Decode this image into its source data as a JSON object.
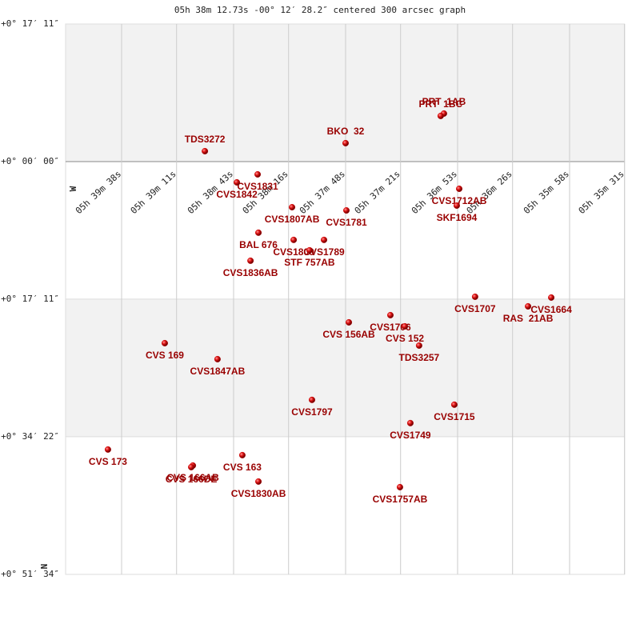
{
  "chart_data": {
    "type": "scatter",
    "title": "05h 38m 12.73s -00° 12′ 28.2″ centered 300 arcsec graph",
    "west_label": "W",
    "north_label": "N",
    "xlim": [
      305.5,
      31
    ],
    "ylim": [
      -1031,
      3094
    ],
    "xticks": [
      {
        "value": 278,
        "label": "05h 39m 38s"
      },
      {
        "value": 251,
        "label": "05h 39m 11s"
      },
      {
        "value": 223,
        "label": "05h 38m 43s"
      },
      {
        "value": 196,
        "label": "05h 38m 16s"
      },
      {
        "value": 168,
        "label": "05h 37m 48s"
      },
      {
        "value": 141,
        "label": "05h 37m 21s"
      },
      {
        "value": 113,
        "label": "05h 36m 53s"
      },
      {
        "value": 86,
        "label": "05h 36m 26s"
      },
      {
        "value": 58,
        "label": "05h 35m 58s"
      },
      {
        "value": 31,
        "label": "05h 35m 31s"
      }
    ],
    "yticks": [
      {
        "value": -1031,
        "label": "+0° 17′ 11″"
      },
      {
        "value": 0,
        "label": "+0° 00′ 00″"
      },
      {
        "value": 1031,
        "label": "+0° 17′ 11″"
      },
      {
        "value": 2062,
        "label": "+0° 34′ 22″"
      },
      {
        "value": 3094,
        "label": "+0° 51′ 34″"
      }
    ],
    "grid": true,
    "marker_color": "#cc0000",
    "label_color": "#990000",
    "points": [
      {
        "name": "PRT  1AB",
        "x": 119.7,
        "y": -360,
        "label_side": "above"
      },
      {
        "name": "PRT  1BC",
        "x": 121.3,
        "y": -342,
        "label_side": "above"
      },
      {
        "name": "BKO  32",
        "x": 168,
        "y": -138,
        "label_side": "above"
      },
      {
        "name": "TDS3272",
        "x": 237.1,
        "y": -78,
        "label_side": "above"
      },
      {
        "name": "CVS1831",
        "x": 211.2,
        "y": 96,
        "label_side": "below"
      },
      {
        "name": "CVS1842",
        "x": 221.4,
        "y": 156,
        "label_side": "below"
      },
      {
        "name": "CVS1712AB",
        "x": 112.2,
        "y": 204,
        "label_side": "below"
      },
      {
        "name": "SKF1694",
        "x": 113.4,
        "y": 330,
        "label_side": "below"
      },
      {
        "name": "CVS1807AB",
        "x": 194.3,
        "y": 342,
        "label_side": "below"
      },
      {
        "name": "CVS1781",
        "x": 167.6,
        "y": 366,
        "label_side": "below"
      },
      {
        "name": "BAL 676",
        "x": 210.8,
        "y": 533,
        "label_side": "below"
      },
      {
        "name": "CVS1800",
        "x": 193.5,
        "y": 587,
        "label_side": "below"
      },
      {
        "name": "CVS1789",
        "x": 178.6,
        "y": 587,
        "label_side": "below"
      },
      {
        "name": "STF 757AB",
        "x": 185.7,
        "y": 665,
        "label_side": "below"
      },
      {
        "name": "CVS1836AB",
        "x": 214.7,
        "y": 743,
        "label_side": "below"
      },
      {
        "name": "CVS1707",
        "x": 104.4,
        "y": 1013,
        "label_side": "below"
      },
      {
        "name": "CVS1664",
        "x": 67,
        "y": 1019,
        "label_side": "below"
      },
      {
        "name": "RAS  21AB",
        "x": 78.4,
        "y": 1085,
        "label_side": "below"
      },
      {
        "name": "CVS 156AB",
        "x": 166.4,
        "y": 1205,
        "label_side": "below"
      },
      {
        "name": "CVS1706",
        "x": 146,
        "y": 1151,
        "label_side": "below"
      },
      {
        "name": "CVS 152",
        "x": 138.9,
        "y": 1235,
        "label_side": "below"
      },
      {
        "name": "TDS3257",
        "x": 131.9,
        "y": 1379,
        "label_side": "below"
      },
      {
        "name": "CVS 169",
        "x": 256.8,
        "y": 1361,
        "label_side": "below"
      },
      {
        "name": "CVS1847AB",
        "x": 230.9,
        "y": 1481,
        "label_side": "below"
      },
      {
        "name": "CVS1797",
        "x": 184.5,
        "y": 1786,
        "label_side": "below"
      },
      {
        "name": "CVS1715",
        "x": 114.6,
        "y": 1822,
        "label_side": "below"
      },
      {
        "name": "CVS1749",
        "x": 136.2,
        "y": 1960,
        "label_side": "below"
      },
      {
        "name": "CVS 173",
        "x": 284.7,
        "y": 2158,
        "label_side": "below"
      },
      {
        "name": "CVS 163",
        "x": 218.7,
        "y": 2200,
        "label_side": "below"
      },
      {
        "name": "CVS 166AB",
        "x": 243,
        "y": 2278,
        "label_side": "below"
      },
      {
        "name": "CVS 166DE",
        "x": 243.8,
        "y": 2290,
        "label_side": "below"
      },
      {
        "name": "CVS1830AB",
        "x": 210.8,
        "y": 2398,
        "label_side": "below"
      },
      {
        "name": "CVS1757AB",
        "x": 141.3,
        "y": 2440,
        "label_side": "below"
      }
    ]
  }
}
